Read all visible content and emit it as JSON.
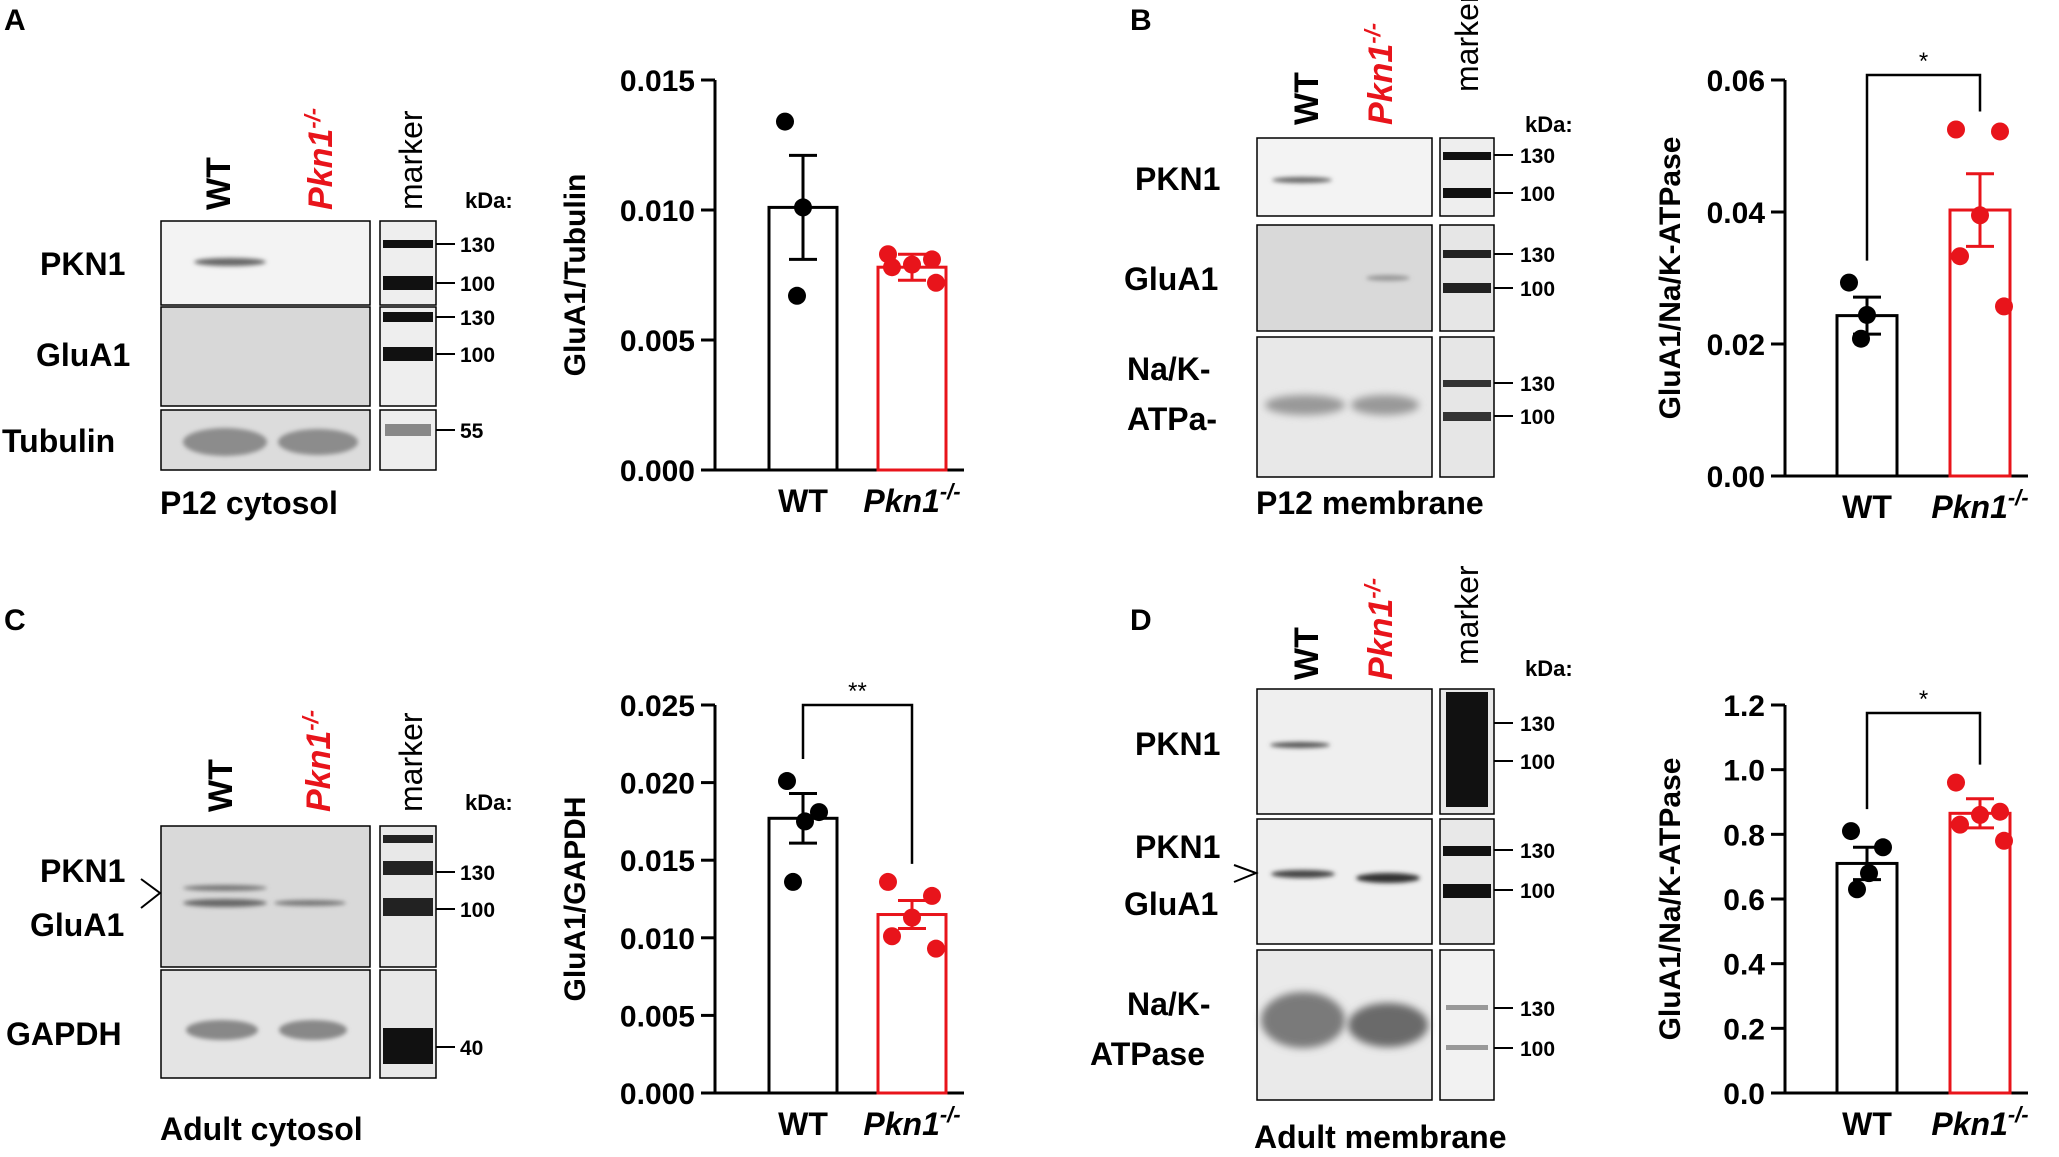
{
  "panels": [
    {
      "letter": "A",
      "lane_labels": {
        "wt": "WT",
        "ko_italic": "Pkn1",
        "ko_sup": "-/-",
        "marker": "marker"
      },
      "kda_label": "kDa:",
      "bands": [
        {
          "label_lines": [
            "PKN1"
          ],
          "marker_kda": [
            "130",
            "100"
          ]
        },
        {
          "label_lines": [
            "GluA1"
          ],
          "marker_kda": [
            "130",
            "100"
          ]
        },
        {
          "label_lines": [
            "Tubulin"
          ],
          "marker_kda": [
            "55"
          ]
        }
      ],
      "caption": "P12 cytosol"
    },
    {
      "letter": "B",
      "lane_labels": {
        "wt": "WT",
        "ko_italic": "Pkn1",
        "ko_sup": "-/-",
        "marker": "marker"
      },
      "kda_label": "kDa:",
      "bands": [
        {
          "label_lines": [
            "PKN1"
          ],
          "marker_kda": [
            "130",
            "100"
          ]
        },
        {
          "label_lines": [
            "GluA1"
          ],
          "marker_kda": [
            "130",
            "100"
          ]
        },
        {
          "label_lines": [
            "Na/K-",
            "ATPa-"
          ],
          "marker_kda": [
            "130",
            "100"
          ]
        }
      ],
      "caption": "P12 membrane"
    },
    {
      "letter": "C",
      "lane_labels": {
        "wt": "WT",
        "ko_italic": "Pkn1",
        "ko_sup": "-/-",
        "marker": "marker"
      },
      "kda_label": "kDa:",
      "bands": [
        {
          "label_lines": [
            "PKN1",
            "GluA1"
          ],
          "marker_kda": [
            "130",
            "100"
          ]
        },
        {
          "label_lines": [
            "GAPDH"
          ],
          "marker_kda": [
            "40"
          ]
        }
      ],
      "caption": "Adult cytosol"
    },
    {
      "letter": "D",
      "lane_labels": {
        "wt": "WT",
        "ko_italic": "Pkn1",
        "ko_sup": "-/-",
        "marker": "marker"
      },
      "kda_label": "kDa:",
      "bands": [
        {
          "label_lines": [
            "PKN1"
          ],
          "marker_kda": [
            "130",
            "100"
          ]
        },
        {
          "label_lines": [
            "PKN1",
            "GluA1"
          ],
          "marker_kda": [
            "130",
            "100"
          ]
        },
        {
          "label_lines": [
            "Na/K-",
            "ATPase"
          ],
          "marker_kda": [
            "130",
            "100"
          ]
        }
      ],
      "caption": "Adult membrane"
    }
  ],
  "colors": {
    "wt": "#000000",
    "ko": "#e8141b"
  },
  "chart_data": [
    {
      "type": "bar",
      "categories": [
        "WT",
        "Pkn1-/-"
      ],
      "category_labels": [
        {
          "text": "WT",
          "sup": ""
        },
        {
          "text": "Pkn1",
          "sup": "-/-"
        }
      ],
      "ylabel": "GluA1/Tubulin",
      "ylim": [
        0,
        0.015
      ],
      "yticks": [
        "0.000",
        "0.005",
        "0.010",
        "0.015"
      ],
      "values": [
        0.0101,
        0.0078
      ],
      "sem": [
        0.002,
        0.0005
      ],
      "points": [
        [
          0.0134,
          0.0101,
          0.0067
        ],
        [
          0.0083,
          0.0081,
          0.0079,
          0.0078,
          0.0072
        ]
      ],
      "significance": ""
    },
    {
      "type": "bar",
      "categories": [
        "WT",
        "Pkn1-/-"
      ],
      "category_labels": [
        {
          "text": "WT",
          "sup": ""
        },
        {
          "text": "Pkn1",
          "sup": "-/-"
        }
      ],
      "ylabel": "GluA1/Na/K-ATPase",
      "ylim": [
        0,
        0.06
      ],
      "yticks": [
        "0.00",
        "0.02",
        "0.04",
        "0.06"
      ],
      "values": [
        0.0243,
        0.0403
      ],
      "sem": [
        0.0028,
        0.0055
      ],
      "points": [
        [
          0.0293,
          0.0244,
          0.0208
        ],
        [
          0.0525,
          0.0522,
          0.0395,
          0.0333,
          0.0257
        ]
      ],
      "significance": "*"
    },
    {
      "type": "bar",
      "categories": [
        "WT",
        "Pkn1-/-"
      ],
      "category_labels": [
        {
          "text": "WT",
          "sup": ""
        },
        {
          "text": "Pkn1",
          "sup": "-/-"
        }
      ],
      "ylabel": "GluA1/GAPDH",
      "ylim": [
        0,
        0.025
      ],
      "yticks": [
        "0.000",
        "0.005",
        "0.010",
        "0.015",
        "0.020",
        "0.025"
      ],
      "values": [
        0.0177,
        0.0115
      ],
      "sem": [
        0.0016,
        0.0009
      ],
      "points": [
        [
          0.0201,
          0.0181,
          0.0175,
          0.0136
        ],
        [
          0.0136,
          0.0127,
          0.0113,
          0.0101,
          0.0093
        ]
      ],
      "significance": "**"
    },
    {
      "type": "bar",
      "categories": [
        "WT",
        "Pkn1-/-"
      ],
      "category_labels": [
        {
          "text": "WT",
          "sup": ""
        },
        {
          "text": "Pkn1",
          "sup": "-/-"
        }
      ],
      "ylabel": "GluA1/Na/K-ATPase",
      "ylim": [
        0,
        1.2
      ],
      "yticks": [
        "0.0",
        "0.2",
        "0.4",
        "0.6",
        "0.8",
        "1.0",
        "1.2"
      ],
      "values": [
        0.71,
        0.865
      ],
      "sem": [
        0.05,
        0.045
      ],
      "points": [
        [
          0.81,
          0.76,
          0.68,
          0.63
        ],
        [
          0.96,
          0.87,
          0.86,
          0.83,
          0.78
        ]
      ],
      "significance": "*"
    }
  ]
}
